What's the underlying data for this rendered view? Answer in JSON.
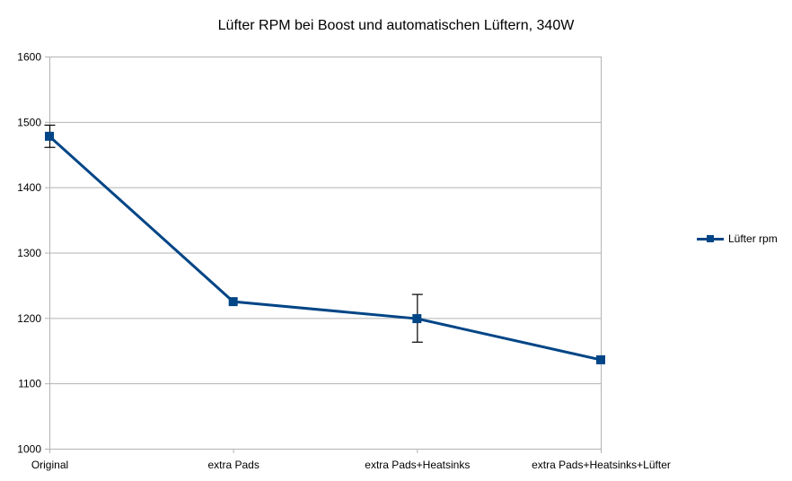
{
  "chart_data": {
    "type": "line",
    "title": "Lüfter RPM bei Boost und automatischen Lüftern, 340W",
    "xlabel": "",
    "ylabel": "",
    "categories": [
      "Original",
      "extra Pads",
      "extra Pads+Heatsinks",
      "extra Pads+Heatsinks+Lüfter"
    ],
    "series": [
      {
        "name": "Lüfter rpm",
        "color": "#004586",
        "marker": "square",
        "values": [
          1478,
          1225,
          1199,
          1136
        ],
        "error_bars": [
          [
            1461,
            1495
          ],
          null,
          [
            1163,
            1236
          ],
          null
        ]
      }
    ],
    "ylim": [
      1000,
      1600
    ],
    "yticks": [
      1000,
      1100,
      1200,
      1300,
      1400,
      1500,
      1600
    ],
    "grid": "horizontal",
    "legend_position": "right"
  },
  "title": "Lüfter RPM bei Boost und automatischen Lüftern, 340W",
  "legend": {
    "label": "Lüfter rpm"
  }
}
